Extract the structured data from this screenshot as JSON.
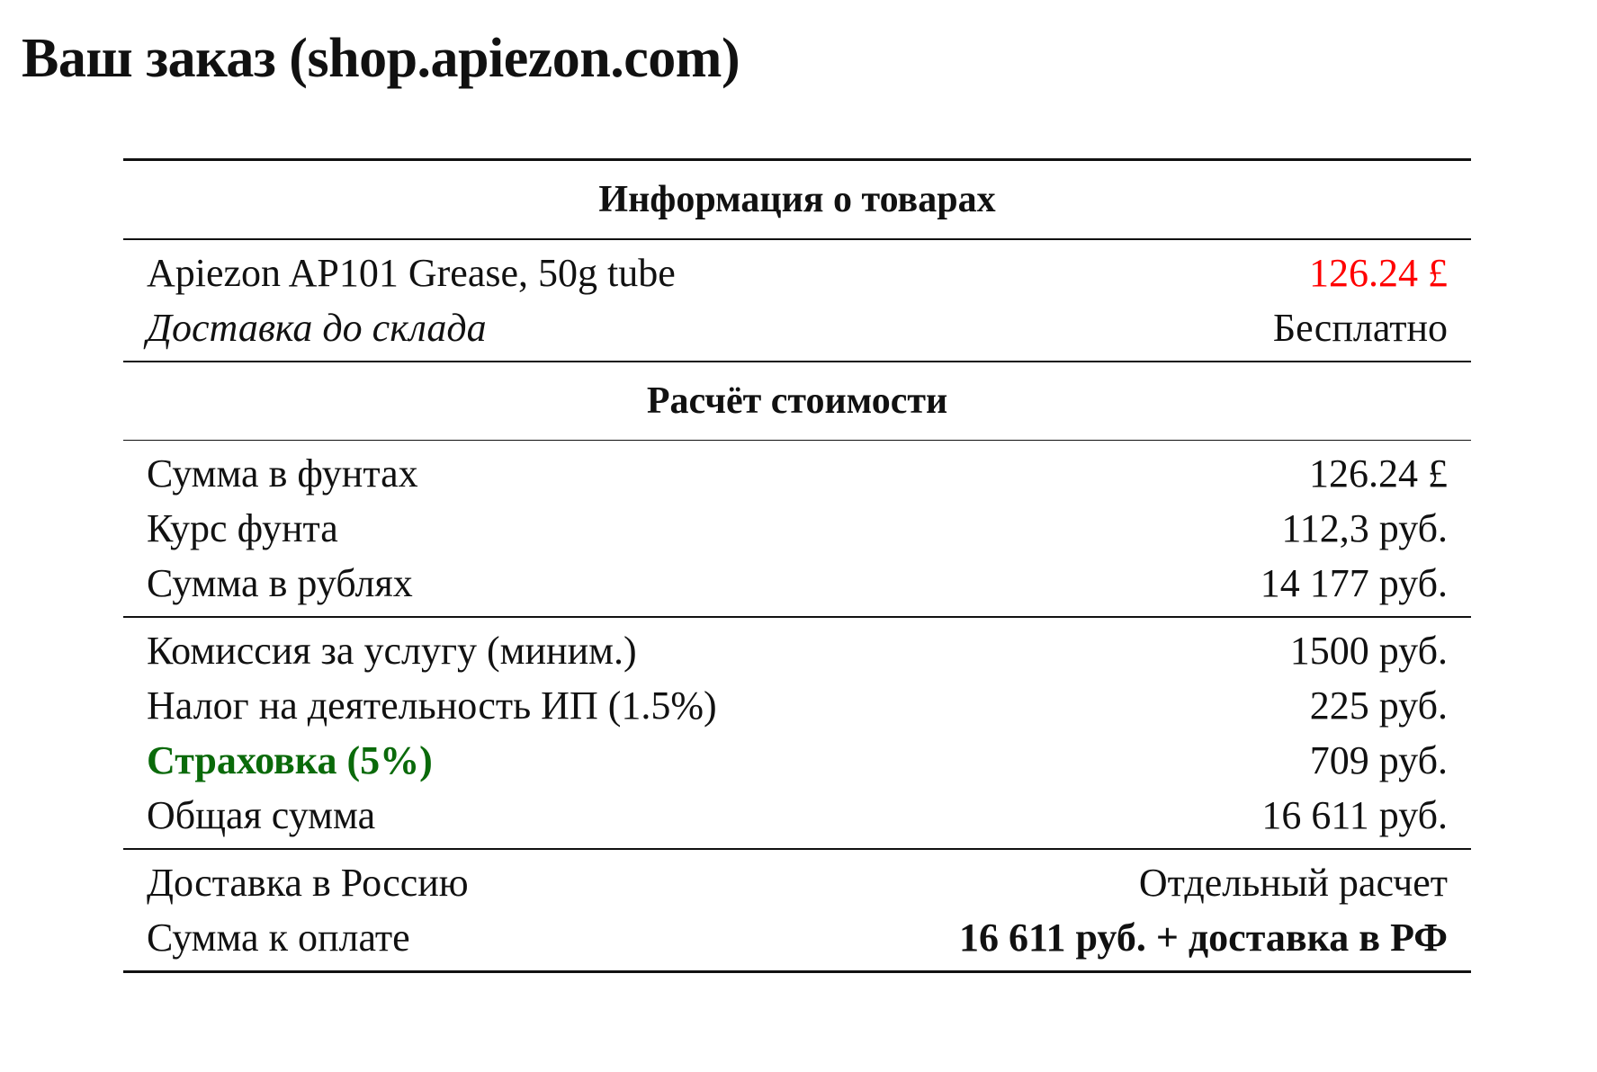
{
  "title": "Ваш заказ (shop.apiezon.com)",
  "colors": {
    "price": "#ff0000",
    "insurance": "#0a6a0a"
  },
  "products": {
    "header": "Информация о товарах",
    "item_name": "Apiezon AP101 Grease, 50g tube",
    "item_price": "126.24 £",
    "shipping_label": "Доставка до склада",
    "shipping_value": "Бесплатно"
  },
  "calc": {
    "header": "Расчёт стоимости",
    "rows1": [
      {
        "label": "Сумма в фунтах",
        "value": "126.24 £"
      },
      {
        "label": "Курс фунта",
        "value": "112,3 руб."
      },
      {
        "label": "Сумма в рублях",
        "value": "14 177 руб."
      }
    ],
    "rows2": [
      {
        "label": "Комиссия за услугу (миним.)",
        "value": "1500 руб."
      },
      {
        "label": "Налог на деятельность ИП (1.5%)",
        "value": "225 руб."
      },
      {
        "label": "Страховка (5%)",
        "value": "709 руб."
      },
      {
        "label": "Общая сумма",
        "value": "16 611 руб."
      }
    ],
    "rows3": [
      {
        "label": "Доставка в Россию",
        "value": "Отдельный расчет"
      },
      {
        "label": "Сумма к оплате",
        "value": "16 611 руб. + доставка в РФ"
      }
    ]
  }
}
